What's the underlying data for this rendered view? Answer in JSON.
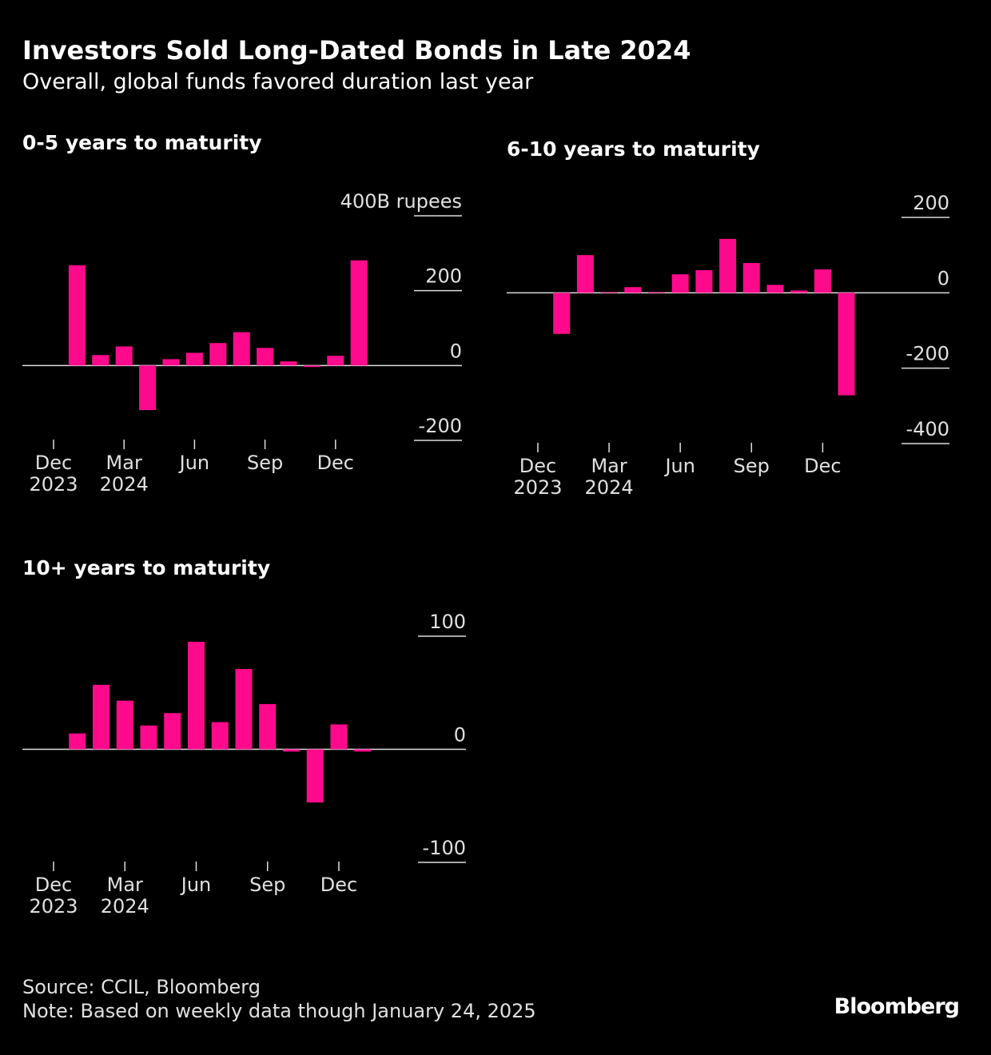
{
  "title": "Investors Sold Long-Dated Bonds in Late 2024",
  "subtitle": "Overall, global funds favored duration last year",
  "chart_data": [
    {
      "type": "bar",
      "title": "0-5 years to maturity",
      "categories": [
        "Dec 2023",
        null,
        null,
        "Mar 2024",
        null,
        null,
        "Jun",
        null,
        null,
        "Sep",
        null,
        null,
        "Dec",
        null
      ],
      "values": [
        null,
        268,
        28,
        51,
        -119,
        17,
        34,
        60,
        89,
        47,
        11,
        -4,
        26,
        281
      ],
      "color": "#ff0a8c",
      "ylim": [
        -200,
        400
      ],
      "yticks": [
        -200,
        0,
        200,
        {
          "value": 400,
          "label": "400B rupees"
        }
      ]
    },
    {
      "type": "bar",
      "title": "6-10 years to maturity",
      "categories": [
        "Dec 2023",
        null,
        null,
        "Mar 2024",
        null,
        null,
        "Jun",
        null,
        null,
        "Sep",
        null,
        null,
        "Dec",
        null
      ],
      "values": [
        null,
        -109,
        100,
        2,
        15,
        2,
        49,
        60,
        143,
        79,
        21,
        6,
        62,
        -272
      ],
      "color": "#ff0a8c",
      "ylim": [
        -400,
        200
      ],
      "yticks": [
        -400,
        -200,
        0,
        200
      ]
    },
    {
      "type": "bar",
      "title": "10+ years to maturity",
      "categories": [
        "Dec 2023",
        null,
        null,
        "Mar 2024",
        null,
        null,
        "Jun",
        null,
        null,
        "Sep",
        null,
        null,
        "Dec",
        null
      ],
      "values": [
        null,
        14,
        57,
        43,
        21,
        32,
        95,
        24,
        71,
        40,
        -2,
        -47,
        22,
        -2
      ],
      "color": "#ff0a8c",
      "ylim": [
        -100,
        100
      ],
      "yticks": [
        -100,
        0,
        100
      ]
    }
  ],
  "source": "Source: CCIL, Bloomberg",
  "note": "Note: Based on weekly data though January 24, 2025",
  "logo": "Bloomberg"
}
